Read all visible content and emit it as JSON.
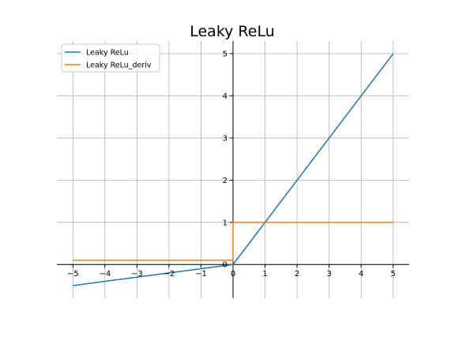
{
  "chart_data": {
    "type": "line",
    "title": "Leaky ReLu",
    "xlabel": "",
    "ylabel": "",
    "xlim": [
      -5.5,
      5.5
    ],
    "ylim": [
      -0.8,
      5.3
    ],
    "x_ticks": [
      -5,
      -4,
      -3,
      -2,
      -1,
      0,
      1,
      2,
      3,
      4,
      5
    ],
    "y_ticks": [
      0,
      1,
      2,
      3,
      4,
      5
    ],
    "x_tick_labels": [
      "−5",
      "−4",
      "−3",
      "−2",
      "−1",
      "0",
      "1",
      "2",
      "3",
      "4",
      "5"
    ],
    "y_tick_labels": [
      "0",
      "1",
      "2",
      "3",
      "4",
      "5"
    ],
    "grid": true,
    "axes_spines": "centered-at-origin",
    "legend_position": "top-left",
    "series": [
      {
        "name": "Leaky ReLu",
        "color": "#1f77b4",
        "points": [
          [
            -5,
            -0.5
          ],
          [
            0,
            0
          ],
          [
            5,
            5
          ]
        ]
      },
      {
        "name": "Leaky ReLu_deriv",
        "color": "#ff7f0e",
        "points": [
          [
            -5,
            0.1
          ],
          [
            0,
            0.1
          ],
          [
            0,
            1
          ],
          [
            5,
            1
          ]
        ]
      }
    ]
  }
}
